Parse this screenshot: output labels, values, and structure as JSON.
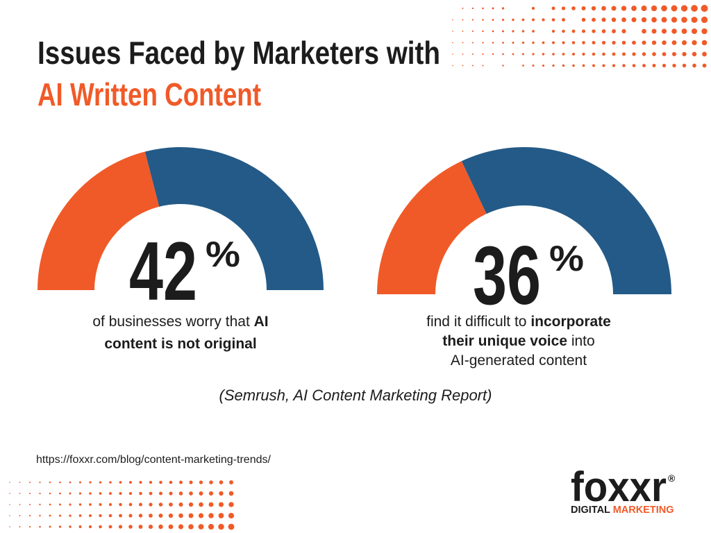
{
  "header": {
    "title_line1": "Issues Faced by Marketers with",
    "title_line2": "AI Written Content"
  },
  "chart_data": [
    {
      "type": "gauge",
      "value": 42,
      "unit": "%",
      "ylim": [
        0,
        100
      ],
      "color": "#f05a28",
      "rest_color": "#245a87",
      "caption": [
        [
          {
            "text": "of businesses worry that ",
            "bold": false
          },
          {
            "text": "AI",
            "bold": true
          }
        ],
        [
          {
            "text": "content is not original",
            "bold": true
          }
        ]
      ]
    },
    {
      "type": "gauge",
      "value": 36,
      "unit": "%",
      "ylim": [
        0,
        100
      ],
      "color": "#f05a28",
      "rest_color": "#245a87",
      "caption": [
        [
          {
            "text": "find it difficult to ",
            "bold": false
          },
          {
            "text": "incorporate",
            "bold": true
          }
        ],
        [
          {
            "text": "their unique voice",
            "bold": true
          },
          {
            "text": " into",
            "bold": false
          }
        ],
        [
          {
            "text": "AI-generated content",
            "bold": false
          }
        ]
      ]
    }
  ],
  "source": "(Semrush, AI Content Marketing Report)",
  "url": "https://foxxr.com/blog/content-marketing-trends/",
  "logo": {
    "name": "foxxr",
    "mark": "®",
    "tagline_1": "DIGITAL",
    "tagline_2": "MARKETING"
  }
}
